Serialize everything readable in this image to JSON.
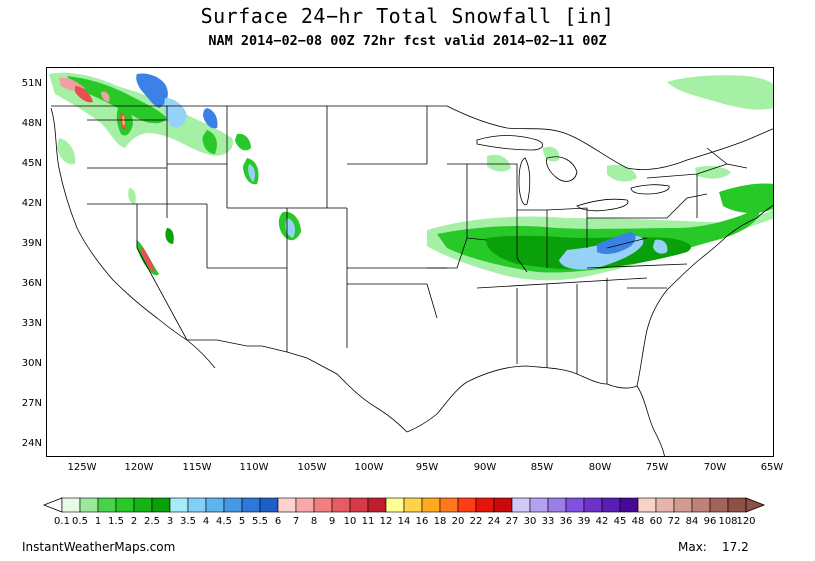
{
  "title": "Surface 24−hr Total Snowfall [in]",
  "subtitle": "NAM 2014−02−08 00Z 72hr fcst valid 2014−02−11 00Z",
  "credit": "InstantWeatherMaps.com",
  "max_label": "Max:",
  "max_value": "17.2",
  "lat_labels": [
    "51N",
    "48N",
    "45N",
    "42N",
    "39N",
    "36N",
    "33N",
    "30N",
    "27N",
    "24N"
  ],
  "lon_labels": [
    "125W",
    "120W",
    "115W",
    "110W",
    "105W",
    "100W",
    "95W",
    "90W",
    "85W",
    "80W",
    "75W",
    "70W",
    "65W"
  ],
  "colorbar": {
    "labels": [
      "0.1",
      "0.5",
      "1",
      "1.5",
      "2",
      "2.5",
      "3",
      "3.5",
      "4",
      "4.5",
      "5",
      "5.5",
      "6",
      "7",
      "8",
      "9",
      "10",
      "11",
      "12",
      "14",
      "16",
      "18",
      "20",
      "22",
      "24",
      "27",
      "30",
      "33",
      "36",
      "39",
      "42",
      "45",
      "48",
      "60",
      "72",
      "84",
      "96",
      "108",
      "120"
    ],
    "colors": [
      "#e6fae6",
      "#9be89b",
      "#4bd24b",
      "#28c828",
      "#14b414",
      "#0aa00a",
      "#a6ecf8",
      "#82d0f8",
      "#5fb4f0",
      "#4896e6",
      "#2f78d8",
      "#1e5ec8",
      "#ffd2d2",
      "#f8a8a8",
      "#f08080",
      "#e65c64",
      "#d63a46",
      "#c01e2a",
      "#ffff96",
      "#ffd24b",
      "#ffaa1e",
      "#ff781e",
      "#ff3c14",
      "#e6140a",
      "#c80a0a",
      "#d2c8fa",
      "#b4a0f0",
      "#9b7de6",
      "#8250dc",
      "#6e32c8",
      "#5a1eb4",
      "#460a96",
      "#f8d2c8",
      "#e6b4aa",
      "#d29b91",
      "#be8278",
      "#a06458",
      "#8c5046"
    ]
  },
  "colors": {
    "light_green": "#a6f0a6",
    "green": "#28c828",
    "dark_green": "#0aa00a",
    "light_blue": "#96d2f8",
    "blue": "#3c82e6",
    "pink": "#f0a0a0",
    "red": "#e65050"
  }
}
